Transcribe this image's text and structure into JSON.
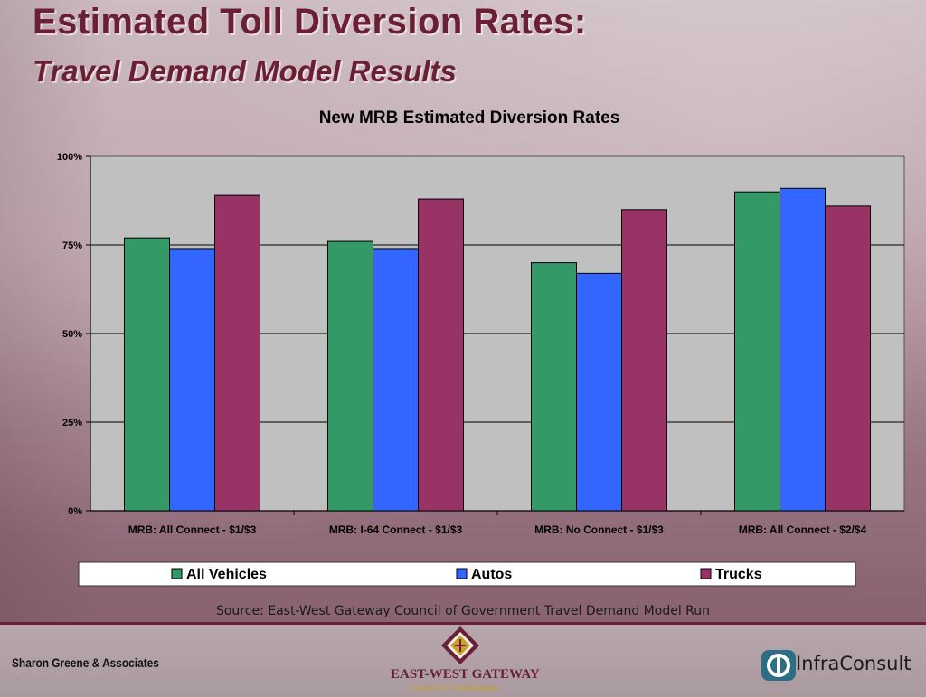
{
  "slide": {
    "title": "Estimated Toll Diversion Rates:",
    "subtitle": "Travel Demand Model Results",
    "source": "Source: East-West Gateway Council of Government Travel Demand Model Run"
  },
  "footer": {
    "left_text": "Sharon Greene & Associates",
    "center_name": "EAST-WEST GATEWAY",
    "center_sub": "Council of Governments",
    "right_name": "InfraConsult"
  },
  "chart_data": {
    "type": "bar",
    "title": "New MRB Estimated Diversion Rates",
    "xlabel": "",
    "ylabel": "",
    "ylim": [
      0,
      100
    ],
    "yticks": [
      "0%",
      "25%",
      "50%",
      "75%",
      "100%"
    ],
    "y_tick_values": [
      0,
      25,
      50,
      75,
      100
    ],
    "grid": true,
    "legend_position": "bottom",
    "plot_background": "#c0c0c0",
    "categories": [
      "MRB: All Connect -  $1/$3",
      "MRB: I-64 Connect - $1/$3",
      "MRB: No Connect - $1/$3",
      "MRB: All Connect - $2/$4"
    ],
    "series": [
      {
        "name": "All Vehicles",
        "color": "#339966",
        "values": [
          77,
          76,
          70,
          90
        ]
      },
      {
        "name": "Autos",
        "color": "#3366ff",
        "values": [
          74,
          74,
          67,
          91
        ]
      },
      {
        "name": "Trucks",
        "color": "#993366",
        "values": [
          89,
          88,
          85,
          86
        ]
      }
    ]
  }
}
